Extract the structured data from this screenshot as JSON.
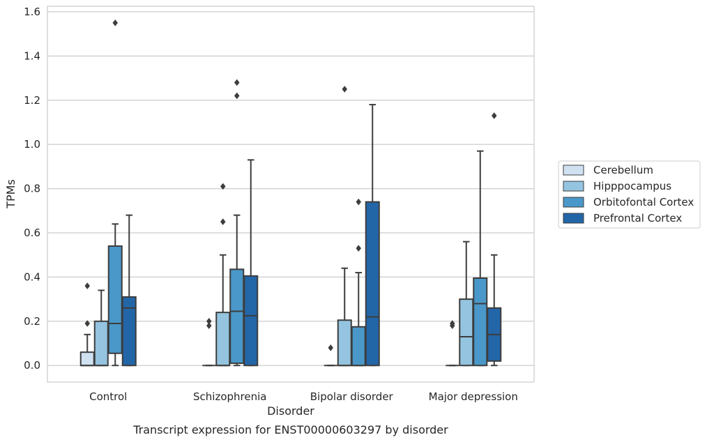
{
  "chart_data": {
    "type": "box",
    "title": "",
    "caption": "Transcript expression for ENST00000603297 by disorder",
    "xlabel": "Disorder",
    "ylabel": "TPMs",
    "ylim": [
      -0.075,
      1.625
    ],
    "yticks": [
      0.0,
      0.2,
      0.4,
      0.6,
      0.8,
      1.0,
      1.2,
      1.4,
      1.6
    ],
    "ytick_labels": [
      "0.0",
      "0.2",
      "0.4",
      "0.6",
      "0.8",
      "1.0",
      "1.2",
      "1.4",
      "1.6"
    ],
    "grid": "horizontal",
    "legend_position": "right",
    "categories": [
      "Control",
      "Schizophrenia",
      "Bipolar disorder",
      "Major depression"
    ],
    "series": [
      {
        "name": "Cerebellum",
        "color": "#d0e1f2",
        "boxes": [
          {
            "whisker_low": 0.0,
            "q1": 0.0,
            "median": 0.0,
            "q3": 0.06,
            "whisker_high": 0.14,
            "outliers": [
              0.19,
              0.36
            ]
          },
          {
            "whisker_low": 0.0,
            "q1": 0.0,
            "median": 0.0,
            "q3": 0.0,
            "whisker_high": 0.0,
            "outliers": [
              0.18,
              0.2
            ]
          },
          {
            "whisker_low": 0.0,
            "q1": 0.0,
            "median": 0.0,
            "q3": 0.0,
            "whisker_high": 0.0,
            "outliers": [
              0.08
            ]
          },
          {
            "whisker_low": 0.0,
            "q1": 0.0,
            "median": 0.0,
            "q3": 0.0,
            "whisker_high": 0.0,
            "outliers": [
              0.18,
              0.19
            ]
          }
        ]
      },
      {
        "name": "Hipppocampus",
        "color": "#94c4df",
        "boxes": [
          {
            "whisker_low": 0.0,
            "q1": 0.0,
            "median": 0.0,
            "q3": 0.2,
            "whisker_high": 0.34,
            "outliers": []
          },
          {
            "whisker_low": 0.0,
            "q1": 0.0,
            "median": 0.0,
            "q3": 0.24,
            "whisker_high": 0.5,
            "outliers": [
              0.65,
              0.81
            ]
          },
          {
            "whisker_low": 0.0,
            "q1": 0.0,
            "median": 0.0,
            "q3": 0.205,
            "whisker_high": 0.44,
            "outliers": [
              1.25
            ]
          },
          {
            "whisker_low": 0.0,
            "q1": 0.0,
            "median": 0.13,
            "q3": 0.3,
            "whisker_high": 0.56,
            "outliers": []
          }
        ]
      },
      {
        "name": "Orbitofontal Cortex",
        "color": "#4a98c9",
        "boxes": [
          {
            "whisker_low": 0.0,
            "q1": 0.055,
            "median": 0.19,
            "q3": 0.54,
            "whisker_high": 0.64,
            "outliers": [
              1.55
            ]
          },
          {
            "whisker_low": 0.0,
            "q1": 0.01,
            "median": 0.245,
            "q3": 0.435,
            "whisker_high": 0.68,
            "outliers": [
              1.22,
              1.28
            ]
          },
          {
            "whisker_low": 0.0,
            "q1": 0.0,
            "median": 0.0,
            "q3": 0.175,
            "whisker_high": 0.42,
            "outliers": [
              0.53,
              0.74
            ]
          },
          {
            "whisker_low": 0.0,
            "q1": 0.0,
            "median": 0.28,
            "q3": 0.395,
            "whisker_high": 0.97,
            "outliers": []
          }
        ]
      },
      {
        "name": "Prefrontal Cortex",
        "color": "#2366a8",
        "boxes": [
          {
            "whisker_low": 0.0,
            "q1": 0.0,
            "median": 0.26,
            "q3": 0.31,
            "whisker_high": 0.68,
            "outliers": []
          },
          {
            "whisker_low": 0.0,
            "q1": 0.0,
            "median": 0.225,
            "q3": 0.405,
            "whisker_high": 0.93,
            "outliers": []
          },
          {
            "whisker_low": 0.0,
            "q1": 0.0,
            "median": 0.22,
            "q3": 0.74,
            "whisker_high": 1.18,
            "outliers": []
          },
          {
            "whisker_low": 0.0,
            "q1": 0.02,
            "median": 0.14,
            "q3": 0.26,
            "whisker_high": 0.5,
            "outliers": [
              1.13
            ]
          }
        ]
      }
    ]
  }
}
